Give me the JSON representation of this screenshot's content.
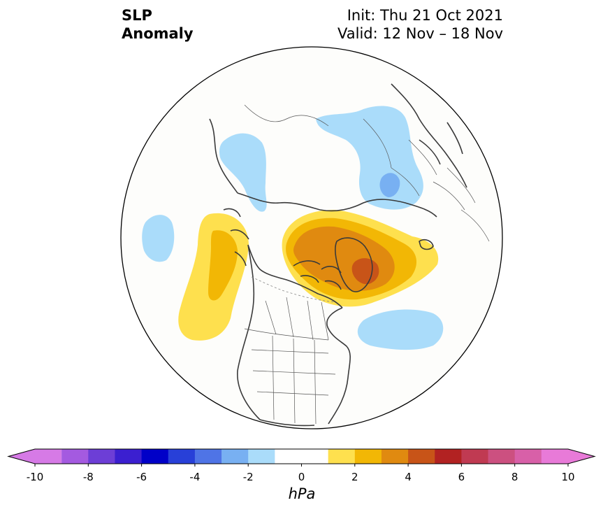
{
  "title": {
    "left_line1": "SLP",
    "left_line2": "Anomaly",
    "right_line1": "Init: Thu 21 Oct 2021",
    "right_line2": "Valid: 12 Nov – 18 Nov"
  },
  "map": {
    "projection": "north-polar-stereographic",
    "field": "sea level pressure anomaly",
    "anomaly_regions": [
      {
        "name": "Greenland / Baffin Bay high",
        "peak_hpa": 5,
        "sign": "positive"
      },
      {
        "name": "Northeast Pacific / Gulf of Alaska high",
        "peak_hpa": 3,
        "sign": "positive"
      },
      {
        "name": "Siberia / Kara Sea low",
        "peak_hpa": -4,
        "sign": "negative"
      },
      {
        "name": "Western Europe / North Atlantic low",
        "peak_hpa": -2,
        "sign": "negative"
      },
      {
        "name": "Bering / NE Asia low",
        "peak_hpa": -2,
        "sign": "negative"
      },
      {
        "name": "North Atlantic off Newfoundland low",
        "peak_hpa": -2,
        "sign": "negative"
      },
      {
        "name": "North Pacific low",
        "peak_hpa": -2,
        "sign": "negative"
      }
    ]
  },
  "colorbar": {
    "units": "hPa",
    "min": -10,
    "max": 10,
    "step": 1,
    "tick_labels": [
      "-10",
      "-8",
      "-6",
      "-4",
      "-2",
      "0",
      "2",
      "4",
      "6",
      "8",
      "10"
    ],
    "colors": [
      "#d67ae6",
      "#a45ae0",
      "#6d3ed6",
      "#3b1fd0",
      "#0000c8",
      "#2840d8",
      "#4f74e6",
      "#78b0f2",
      "#aadcfa",
      "#ffffff",
      "#ffffff",
      "#fee04e",
      "#f2b705",
      "#e08a10",
      "#c85418",
      "#b22222",
      "#c03a52",
      "#cc5080",
      "#d860a8",
      "#e87ad8"
    ],
    "extend": "both"
  }
}
